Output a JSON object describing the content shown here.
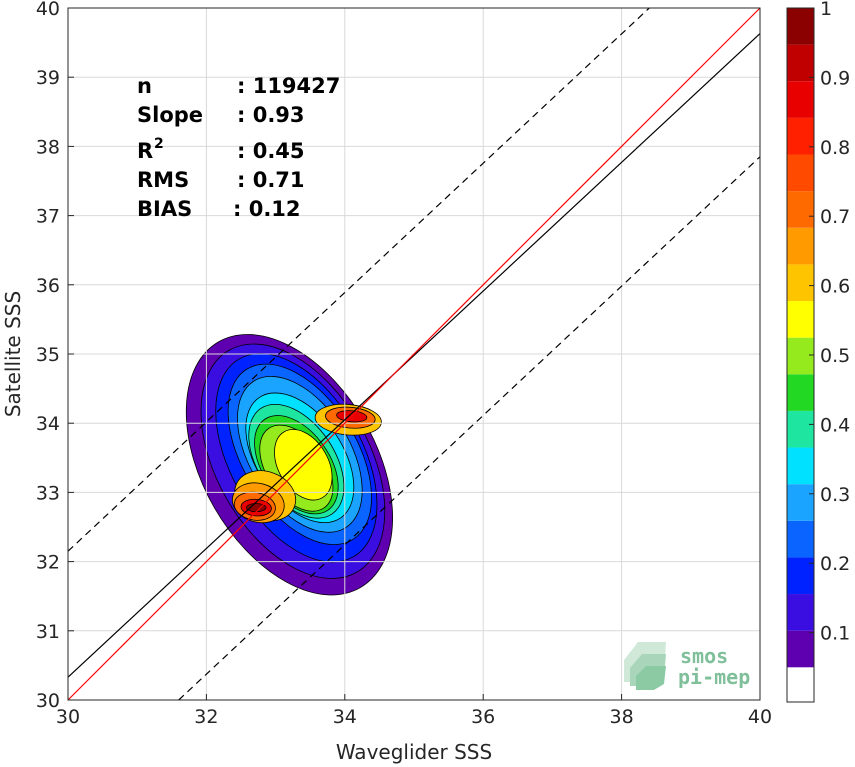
{
  "chart_data": {
    "type": "heatmap",
    "title": "",
    "xlabel": "Waveglider SSS",
    "ylabel": "Satellite SSS",
    "xlim": [
      30,
      40
    ],
    "ylim": [
      30,
      40
    ],
    "x_ticks": [
      "30",
      "32",
      "34",
      "36",
      "38",
      "40"
    ],
    "y_ticks": [
      "30",
      "31",
      "32",
      "33",
      "34",
      "35",
      "36",
      "37",
      "38",
      "39",
      "40"
    ],
    "grid": true,
    "stats": {
      "n_label": "n",
      "n_value": ": 119427",
      "slope_label": "Slope",
      "slope_value": ": 0.93",
      "r2_label": "R",
      "r2_sup": "2",
      "r2_value": ": 0.45",
      "rms_label": "RMS",
      "rms_value": ": 0.71",
      "bias_label": "BIAS",
      "bias_value": ": 0.12"
    },
    "lines": {
      "identity": {
        "color": "#ff0000",
        "x": [
          30,
          40
        ],
        "y": [
          30,
          40
        ]
      },
      "fit": {
        "color": "#000000",
        "x": [
          30,
          40
        ],
        "y": [
          30.33,
          39.63
        ]
      },
      "upper_bound": {
        "color": "#000000",
        "dash": true,
        "x": [
          30,
          38.4
        ],
        "y": [
          32.15,
          40
        ]
      },
      "lower_bound": {
        "color": "#000000",
        "dash": true,
        "x": [
          31.6,
          40
        ],
        "y": [
          30,
          37.85
        ]
      }
    },
    "density_levels": [
      {
        "level": 0.05,
        "color": "#5f00b0",
        "center": [
          33.2,
          33.4
        ],
        "rx": 1.25,
        "ry": 2.05,
        "angle": 60
      },
      {
        "level": 0.15,
        "color": "#3a0ee0",
        "center": [
          33.25,
          33.45
        ],
        "rx": 1.1,
        "ry": 1.85,
        "angle": 60
      },
      {
        "level": 0.2,
        "color": "#0022ff",
        "center": [
          33.3,
          33.5
        ],
        "rx": 0.95,
        "ry": 1.65,
        "angle": 60
      },
      {
        "level": 0.25,
        "color": "#0a64ff",
        "center": [
          33.35,
          33.55
        ],
        "rx": 0.82,
        "ry": 1.45,
        "angle": 58
      },
      {
        "level": 0.3,
        "color": "#1aa3ff",
        "center": [
          33.35,
          33.55
        ],
        "rx": 0.72,
        "ry": 1.25,
        "angle": 58
      },
      {
        "level": 0.4,
        "color": "#00e1ff",
        "center": [
          33.35,
          33.5
        ],
        "rx": 0.62,
        "ry": 1.05,
        "angle": 56
      },
      {
        "level": 0.45,
        "color": "#1ee6a0",
        "center": [
          33.3,
          33.45
        ],
        "rx": 0.55,
        "ry": 0.92,
        "angle": 56
      },
      {
        "level": 0.5,
        "color": "#23d823",
        "center": [
          33.3,
          33.4
        ],
        "rx": 0.48,
        "ry": 0.8,
        "angle": 55
      },
      {
        "level": 0.6,
        "color": "#95ea1e",
        "center": [
          33.3,
          33.35
        ],
        "rx": 0.42,
        "ry": 0.7,
        "angle": 55
      },
      {
        "level": 0.65,
        "color": "#ffff00",
        "center": [
          33.4,
          33.4
        ],
        "rx": 0.36,
        "ry": 0.55,
        "angle": 60
      },
      {
        "level": 0.7,
        "color": "#ffc400",
        "center": [
          32.85,
          32.95
        ],
        "rx": 0.35,
        "ry": 0.45,
        "angle": 20
      },
      {
        "level": 0.75,
        "color": "#ff9a00",
        "center": [
          32.75,
          32.85
        ],
        "rx": 0.28,
        "ry": 0.38,
        "angle": 15
      },
      {
        "level": 0.8,
        "color": "#ff6a00",
        "center": [
          32.7,
          32.8
        ],
        "rx": 0.2,
        "ry": 0.3,
        "angle": 10
      },
      {
        "level": 0.9,
        "color": "#e80000",
        "center": [
          32.72,
          32.78
        ],
        "rx": 0.12,
        "ry": 0.22,
        "angle": 5
      },
      {
        "level": 1.0,
        "color": "#8b0000",
        "center": [
          32.72,
          32.78
        ],
        "rx": 0.06,
        "ry": 0.14,
        "angle": 0
      }
    ],
    "secondary_peak": [
      {
        "level": 0.7,
        "color": "#ffc400",
        "center": [
          34.05,
          34.05
        ],
        "rx": 0.22,
        "ry": 0.48,
        "angle": 5
      },
      {
        "level": 0.8,
        "color": "#ff6a00",
        "center": [
          34.08,
          34.08
        ],
        "rx": 0.15,
        "ry": 0.36,
        "angle": 5
      },
      {
        "level": 0.9,
        "color": "#e80000",
        "center": [
          34.1,
          34.1
        ],
        "rx": 0.08,
        "ry": 0.22,
        "angle": 5
      }
    ],
    "colorbar": {
      "ticks": [
        "0.1",
        "0.2",
        "0.3",
        "0.4",
        "0.5",
        "0.6",
        "0.7",
        "0.8",
        "0.9",
        "1"
      ],
      "colors": [
        "#ffffff",
        "#5f00b0",
        "#3a0ee0",
        "#0022ff",
        "#0a64ff",
        "#1aa3ff",
        "#00e1ff",
        "#1ee6a0",
        "#23d823",
        "#95ea1e",
        "#ffff00",
        "#ffc400",
        "#ff9a00",
        "#ff6a00",
        "#ff4a00",
        "#ff2000",
        "#e80000",
        "#c00000",
        "#8b0000"
      ]
    },
    "logo": {
      "line1": "smos",
      "line2": "pi-mep"
    }
  }
}
